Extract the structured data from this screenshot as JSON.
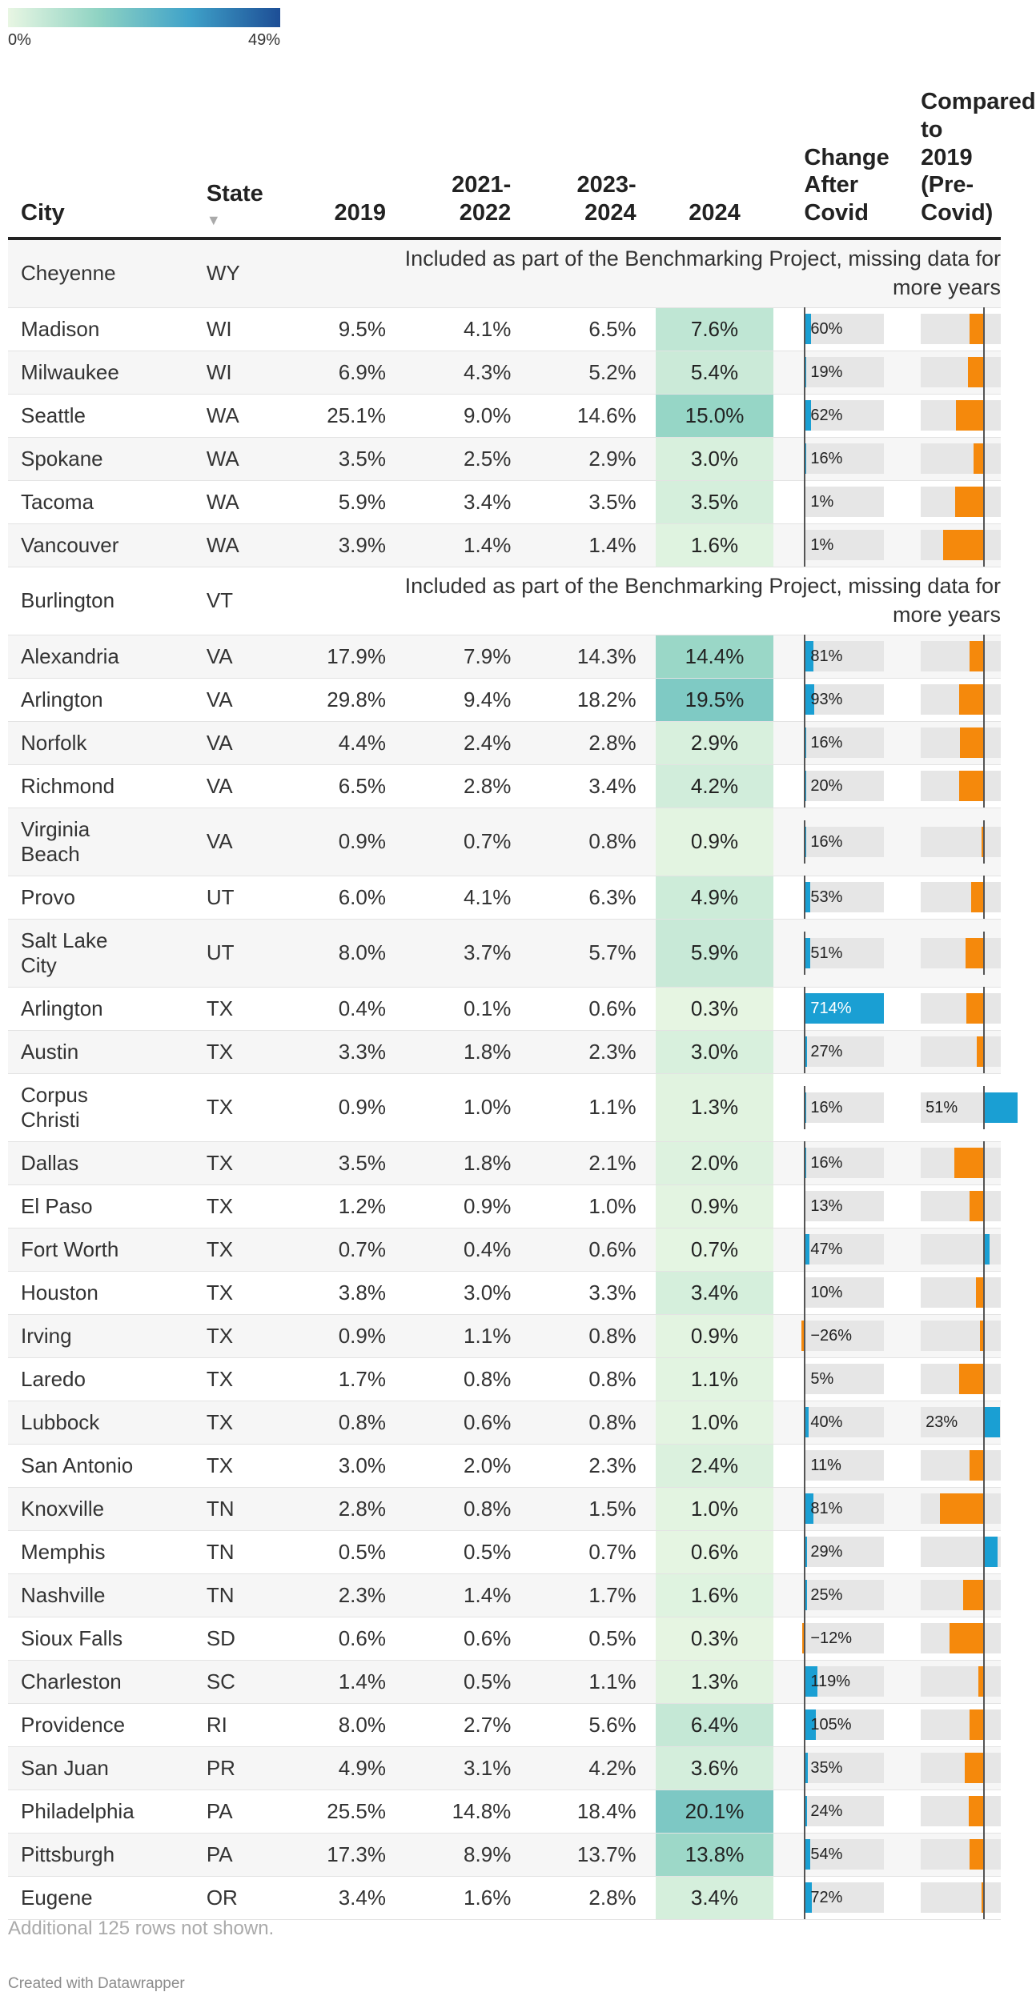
{
  "legend": {
    "min_label": "0%",
    "max_label": "49%",
    "colors": [
      "#e8f6e3",
      "#8fd3c3",
      "#3fa2c9",
      "#1d4e96"
    ]
  },
  "header": {
    "city": "City",
    "state": "State",
    "y2019": "2019",
    "y2122": "2021-\n2022",
    "y2324": "2023-\n2024",
    "y2024": "2024",
    "change": "Change\nAfter\nCovid",
    "compare": "Compared\nto 2019\n(Pre-\nCovid)",
    "sort_icon": "▼"
  },
  "notes": {
    "missing": "Included as part of the Benchmarking Project, missing data for\nmore years"
  },
  "footer": {
    "more_rows": "Additional 125 rows not shown.",
    "credit": "Created with Datawrapper"
  },
  "colors": {
    "change_positive": "#1a9fd3",
    "change_negative": "#f5890c",
    "compare": "#f5890c"
  },
  "chart_data": {
    "type": "table",
    "title": "",
    "color_scale": {
      "column": "2024",
      "min": 0,
      "max": 49,
      "unit": "%"
    },
    "columns": [
      "City",
      "State",
      "2019",
      "2021-2022",
      "2023-2024",
      "2024",
      "Change After Covid",
      "Compared to 2019 (Pre-Covid)"
    ],
    "rows": [
      {
        "city": "Cheyenne",
        "state": "WY",
        "missing": true
      },
      {
        "city": "Madison",
        "state": "WI",
        "y2019": "9.5%",
        "y2122": "4.1%",
        "y2324": "6.5%",
        "y2024": "7.6%",
        "v2024": 7.6,
        "change": 60,
        "cmp": -20
      },
      {
        "city": "Milwaukee",
        "state": "WI",
        "y2019": "6.9%",
        "y2122": "4.3%",
        "y2324": "5.2%",
        "y2024": "5.4%",
        "v2024": 5.4,
        "change": 19,
        "cmp": -22
      },
      {
        "city": "Seattle",
        "state": "WA",
        "y2019": "25.1%",
        "y2122": "9.0%",
        "y2324": "14.6%",
        "y2024": "15.0%",
        "v2024": 15.0,
        "change": 62,
        "cmp": -40
      },
      {
        "city": "Spokane",
        "state": "WA",
        "y2019": "3.5%",
        "y2122": "2.5%",
        "y2324": "2.9%",
        "y2024": "3.0%",
        "v2024": 3.0,
        "change": 16,
        "cmp": -14
      },
      {
        "city": "Tacoma",
        "state": "WA",
        "y2019": "5.9%",
        "y2122": "3.4%",
        "y2324": "3.5%",
        "y2024": "3.5%",
        "v2024": 3.5,
        "change": 1,
        "cmp": -41
      },
      {
        "city": "Vancouver",
        "state": "WA",
        "y2019": "3.9%",
        "y2122": "1.4%",
        "y2324": "1.4%",
        "y2024": "1.6%",
        "v2024": 1.6,
        "change": 1,
        "cmp": -59
      },
      {
        "city": "Burlington",
        "state": "VT",
        "missing": true
      },
      {
        "city": "Alexandria",
        "state": "VA",
        "y2019": "17.9%",
        "y2122": "7.9%",
        "y2324": "14.3%",
        "y2024": "14.4%",
        "v2024": 14.4,
        "change": 81,
        "cmp": -20
      },
      {
        "city": "Arlington",
        "state": "VA",
        "y2019": "29.8%",
        "y2122": "9.4%",
        "y2324": "18.2%",
        "y2024": "19.5%",
        "v2024": 19.5,
        "change": 93,
        "cmp": -35
      },
      {
        "city": "Norfolk",
        "state": "VA",
        "y2019": "4.4%",
        "y2122": "2.4%",
        "y2324": "2.8%",
        "y2024": "2.9%",
        "v2024": 2.9,
        "change": 16,
        "cmp": -34
      },
      {
        "city": "Richmond",
        "state": "VA",
        "y2019": "6.5%",
        "y2122": "2.8%",
        "y2324": "3.4%",
        "y2024": "4.2%",
        "v2024": 4.2,
        "change": 20,
        "cmp": -35
      },
      {
        "city": "Virginia\nBeach",
        "state": "VA",
        "y2019": "0.9%",
        "y2122": "0.7%",
        "y2324": "0.8%",
        "y2024": "0.9%",
        "v2024": 0.9,
        "change": 16,
        "cmp": -3,
        "tall": true
      },
      {
        "city": "Provo",
        "state": "UT",
        "y2019": "6.0%",
        "y2122": "4.1%",
        "y2324": "6.3%",
        "y2024": "4.9%",
        "v2024": 4.9,
        "change": 53,
        "cmp": -18
      },
      {
        "city": "Salt Lake\nCity",
        "state": "UT",
        "y2019": "8.0%",
        "y2122": "3.7%",
        "y2324": "5.7%",
        "y2024": "5.9%",
        "v2024": 5.9,
        "change": 51,
        "cmp": -26,
        "tall": true
      },
      {
        "city": "Arlington",
        "state": "TX",
        "y2019": "0.4%",
        "y2122": "0.1%",
        "y2324": "0.6%",
        "y2024": "0.3%",
        "v2024": 0.3,
        "change": 714,
        "cmp": -25
      },
      {
        "city": "Austin",
        "state": "TX",
        "y2019": "3.3%",
        "y2122": "1.8%",
        "y2324": "2.3%",
        "y2024": "3.0%",
        "v2024": 3.0,
        "change": 27,
        "cmp": -9
      },
      {
        "city": "Corpus\nChristi",
        "state": "TX",
        "y2019": "0.9%",
        "y2122": "1.0%",
        "y2324": "1.1%",
        "y2024": "1.3%",
        "v2024": 1.3,
        "change": 16,
        "cmp": 51,
        "cmp_label": "51%",
        "tall": true
      },
      {
        "city": "Dallas",
        "state": "TX",
        "y2019": "3.5%",
        "y2122": "1.8%",
        "y2324": "2.1%",
        "y2024": "2.0%",
        "v2024": 2.0,
        "change": 16,
        "cmp": -43
      },
      {
        "city": "El Paso",
        "state": "TX",
        "y2019": "1.2%",
        "y2122": "0.9%",
        "y2324": "1.0%",
        "y2024": "0.9%",
        "v2024": 0.9,
        "change": 13,
        "cmp": -20
      },
      {
        "city": "Fort Worth",
        "state": "TX",
        "y2019": "0.7%",
        "y2122": "0.4%",
        "y2324": "0.6%",
        "y2024": "0.7%",
        "v2024": 0.7,
        "change": 47,
        "cmp": 2
      },
      {
        "city": "Houston",
        "state": "TX",
        "y2019": "3.8%",
        "y2122": "3.0%",
        "y2324": "3.3%",
        "y2024": "3.4%",
        "v2024": 3.4,
        "change": 10,
        "cmp": -11
      },
      {
        "city": "Irving",
        "state": "TX",
        "y2019": "0.9%",
        "y2122": "1.1%",
        "y2324": "0.8%",
        "y2024": "0.9%",
        "v2024": 0.9,
        "change": -26,
        "change_label": "−26%",
        "cmp": -5
      },
      {
        "city": "Laredo",
        "state": "TX",
        "y2019": "1.7%",
        "y2122": "0.8%",
        "y2324": "0.8%",
        "y2024": "1.1%",
        "v2024": 1.1,
        "change": 5,
        "cmp": -35
      },
      {
        "city": "Lubbock",
        "state": "TX",
        "y2019": "0.8%",
        "y2122": "0.6%",
        "y2324": "0.8%",
        "y2024": "1.0%",
        "v2024": 1.0,
        "change": 40,
        "cmp": 23,
        "cmp_label": "23%"
      },
      {
        "city": "San Antonio",
        "state": "TX",
        "y2019": "3.0%",
        "y2122": "2.0%",
        "y2324": "2.3%",
        "y2024": "2.4%",
        "v2024": 2.4,
        "change": 11,
        "cmp": -20
      },
      {
        "city": "Knoxville",
        "state": "TN",
        "y2019": "2.8%",
        "y2122": "0.8%",
        "y2324": "1.5%",
        "y2024": "1.0%",
        "v2024": 1.0,
        "change": 81,
        "cmp": -64
      },
      {
        "city": "Memphis",
        "state": "TN",
        "y2019": "0.5%",
        "y2122": "0.5%",
        "y2324": "0.7%",
        "y2024": "0.6%",
        "v2024": 0.6,
        "change": 29,
        "cmp": 20
      },
      {
        "city": "Nashville",
        "state": "TN",
        "y2019": "2.3%",
        "y2122": "1.4%",
        "y2324": "1.7%",
        "y2024": "1.6%",
        "v2024": 1.6,
        "change": 25,
        "cmp": -30
      },
      {
        "city": "Sioux Falls",
        "state": "SD",
        "y2019": "0.6%",
        "y2122": "0.6%",
        "y2324": "0.5%",
        "y2024": "0.3%",
        "v2024": 0.3,
        "change": -12,
        "change_label": "−12%",
        "cmp": -50
      },
      {
        "city": "Charleston",
        "state": "SC",
        "y2019": "1.4%",
        "y2122": "0.5%",
        "y2324": "1.1%",
        "y2024": "1.3%",
        "v2024": 1.3,
        "change": 119,
        "cmp": -7
      },
      {
        "city": "Providence",
        "state": "RI",
        "y2019": "8.0%",
        "y2122": "2.7%",
        "y2324": "5.6%",
        "y2024": "6.4%",
        "v2024": 6.4,
        "change": 105,
        "cmp": -20
      },
      {
        "city": "San Juan",
        "state": "PR",
        "y2019": "4.9%",
        "y2122": "3.1%",
        "y2324": "4.2%",
        "y2024": "3.6%",
        "v2024": 3.6,
        "change": 35,
        "cmp": -27
      },
      {
        "city": "Philadelphia",
        "state": "PA",
        "y2019": "25.5%",
        "y2122": "14.8%",
        "y2324": "18.4%",
        "y2024": "20.1%",
        "v2024": 20.1,
        "change": 24,
        "cmp": -21
      },
      {
        "city": "Pittsburgh",
        "state": "PA",
        "y2019": "17.3%",
        "y2122": "8.9%",
        "y2324": "13.7%",
        "y2024": "13.8%",
        "v2024": 13.8,
        "change": 54,
        "cmp": -20
      },
      {
        "city": "Eugene",
        "state": "OR",
        "y2019": "3.4%",
        "y2122": "1.6%",
        "y2324": "2.8%",
        "y2024": "3.4%",
        "v2024": 3.4,
        "change": 72,
        "cmp": -1
      }
    ]
  }
}
